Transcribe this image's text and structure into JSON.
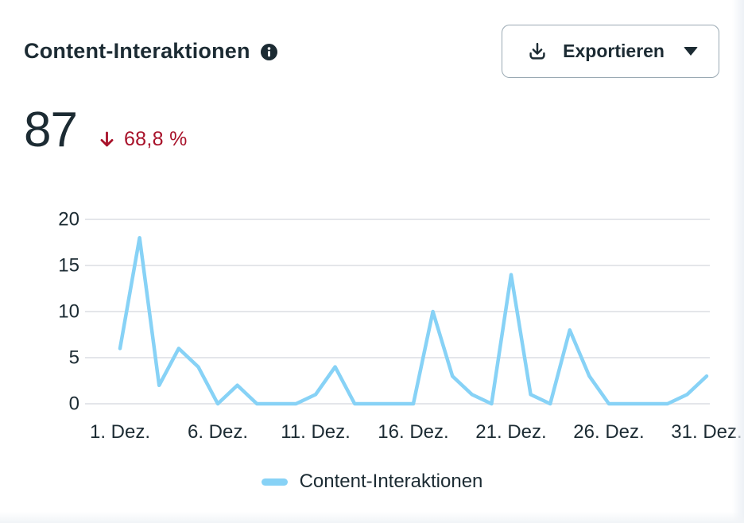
{
  "header": {
    "title": "Content-Interaktionen",
    "export_label": "Exportieren"
  },
  "stats": {
    "value": "87",
    "change": "68,8 %",
    "change_direction": "down"
  },
  "legend": {
    "label": "Content-Interaktionen"
  },
  "colors": {
    "line": "#87d2f6",
    "text_dark": "#1c2b33",
    "negative": "#a8122a",
    "gridline": "#e4e6ea"
  },
  "chart_data": {
    "type": "line",
    "title": "Content-Interaktionen",
    "xlabel": "",
    "ylabel": "",
    "ylim": [
      0,
      20
    ],
    "grid": true,
    "legend_position": "bottom",
    "y_ticks": [
      0,
      5,
      10,
      15,
      20
    ],
    "x_tick_days": [
      1,
      6,
      11,
      16,
      21,
      26,
      31
    ],
    "x_tick_labels": [
      "1. Dez.",
      "6. Dez.",
      "11. Dez.",
      "16. Dez.",
      "21. Dez.",
      "26. Dez.",
      "31. Dez."
    ],
    "categories": [
      "1. Dez.",
      "2. Dez.",
      "3. Dez.",
      "4. Dez.",
      "5. Dez.",
      "6. Dez.",
      "7. Dez.",
      "8. Dez.",
      "9. Dez.",
      "10. Dez.",
      "11. Dez.",
      "12. Dez.",
      "13. Dez.",
      "14. Dez.",
      "15. Dez.",
      "16. Dez.",
      "17. Dez.",
      "18. Dez.",
      "19. Dez.",
      "20. Dez.",
      "21. Dez.",
      "22. Dez.",
      "23. Dez.",
      "24. Dez.",
      "25. Dez.",
      "26. Dez.",
      "27. Dez.",
      "28. Dez.",
      "29. Dez.",
      "30. Dez.",
      "31. Dez."
    ],
    "series": [
      {
        "name": "Content-Interaktionen",
        "values": [
          6,
          18,
          2,
          6,
          4,
          0,
          2,
          0,
          0,
          0,
          1,
          4,
          0,
          0,
          0,
          0,
          10,
          3,
          1,
          0,
          14,
          1,
          0,
          8,
          3,
          0,
          0,
          0,
          0,
          1,
          3
        ]
      }
    ]
  }
}
